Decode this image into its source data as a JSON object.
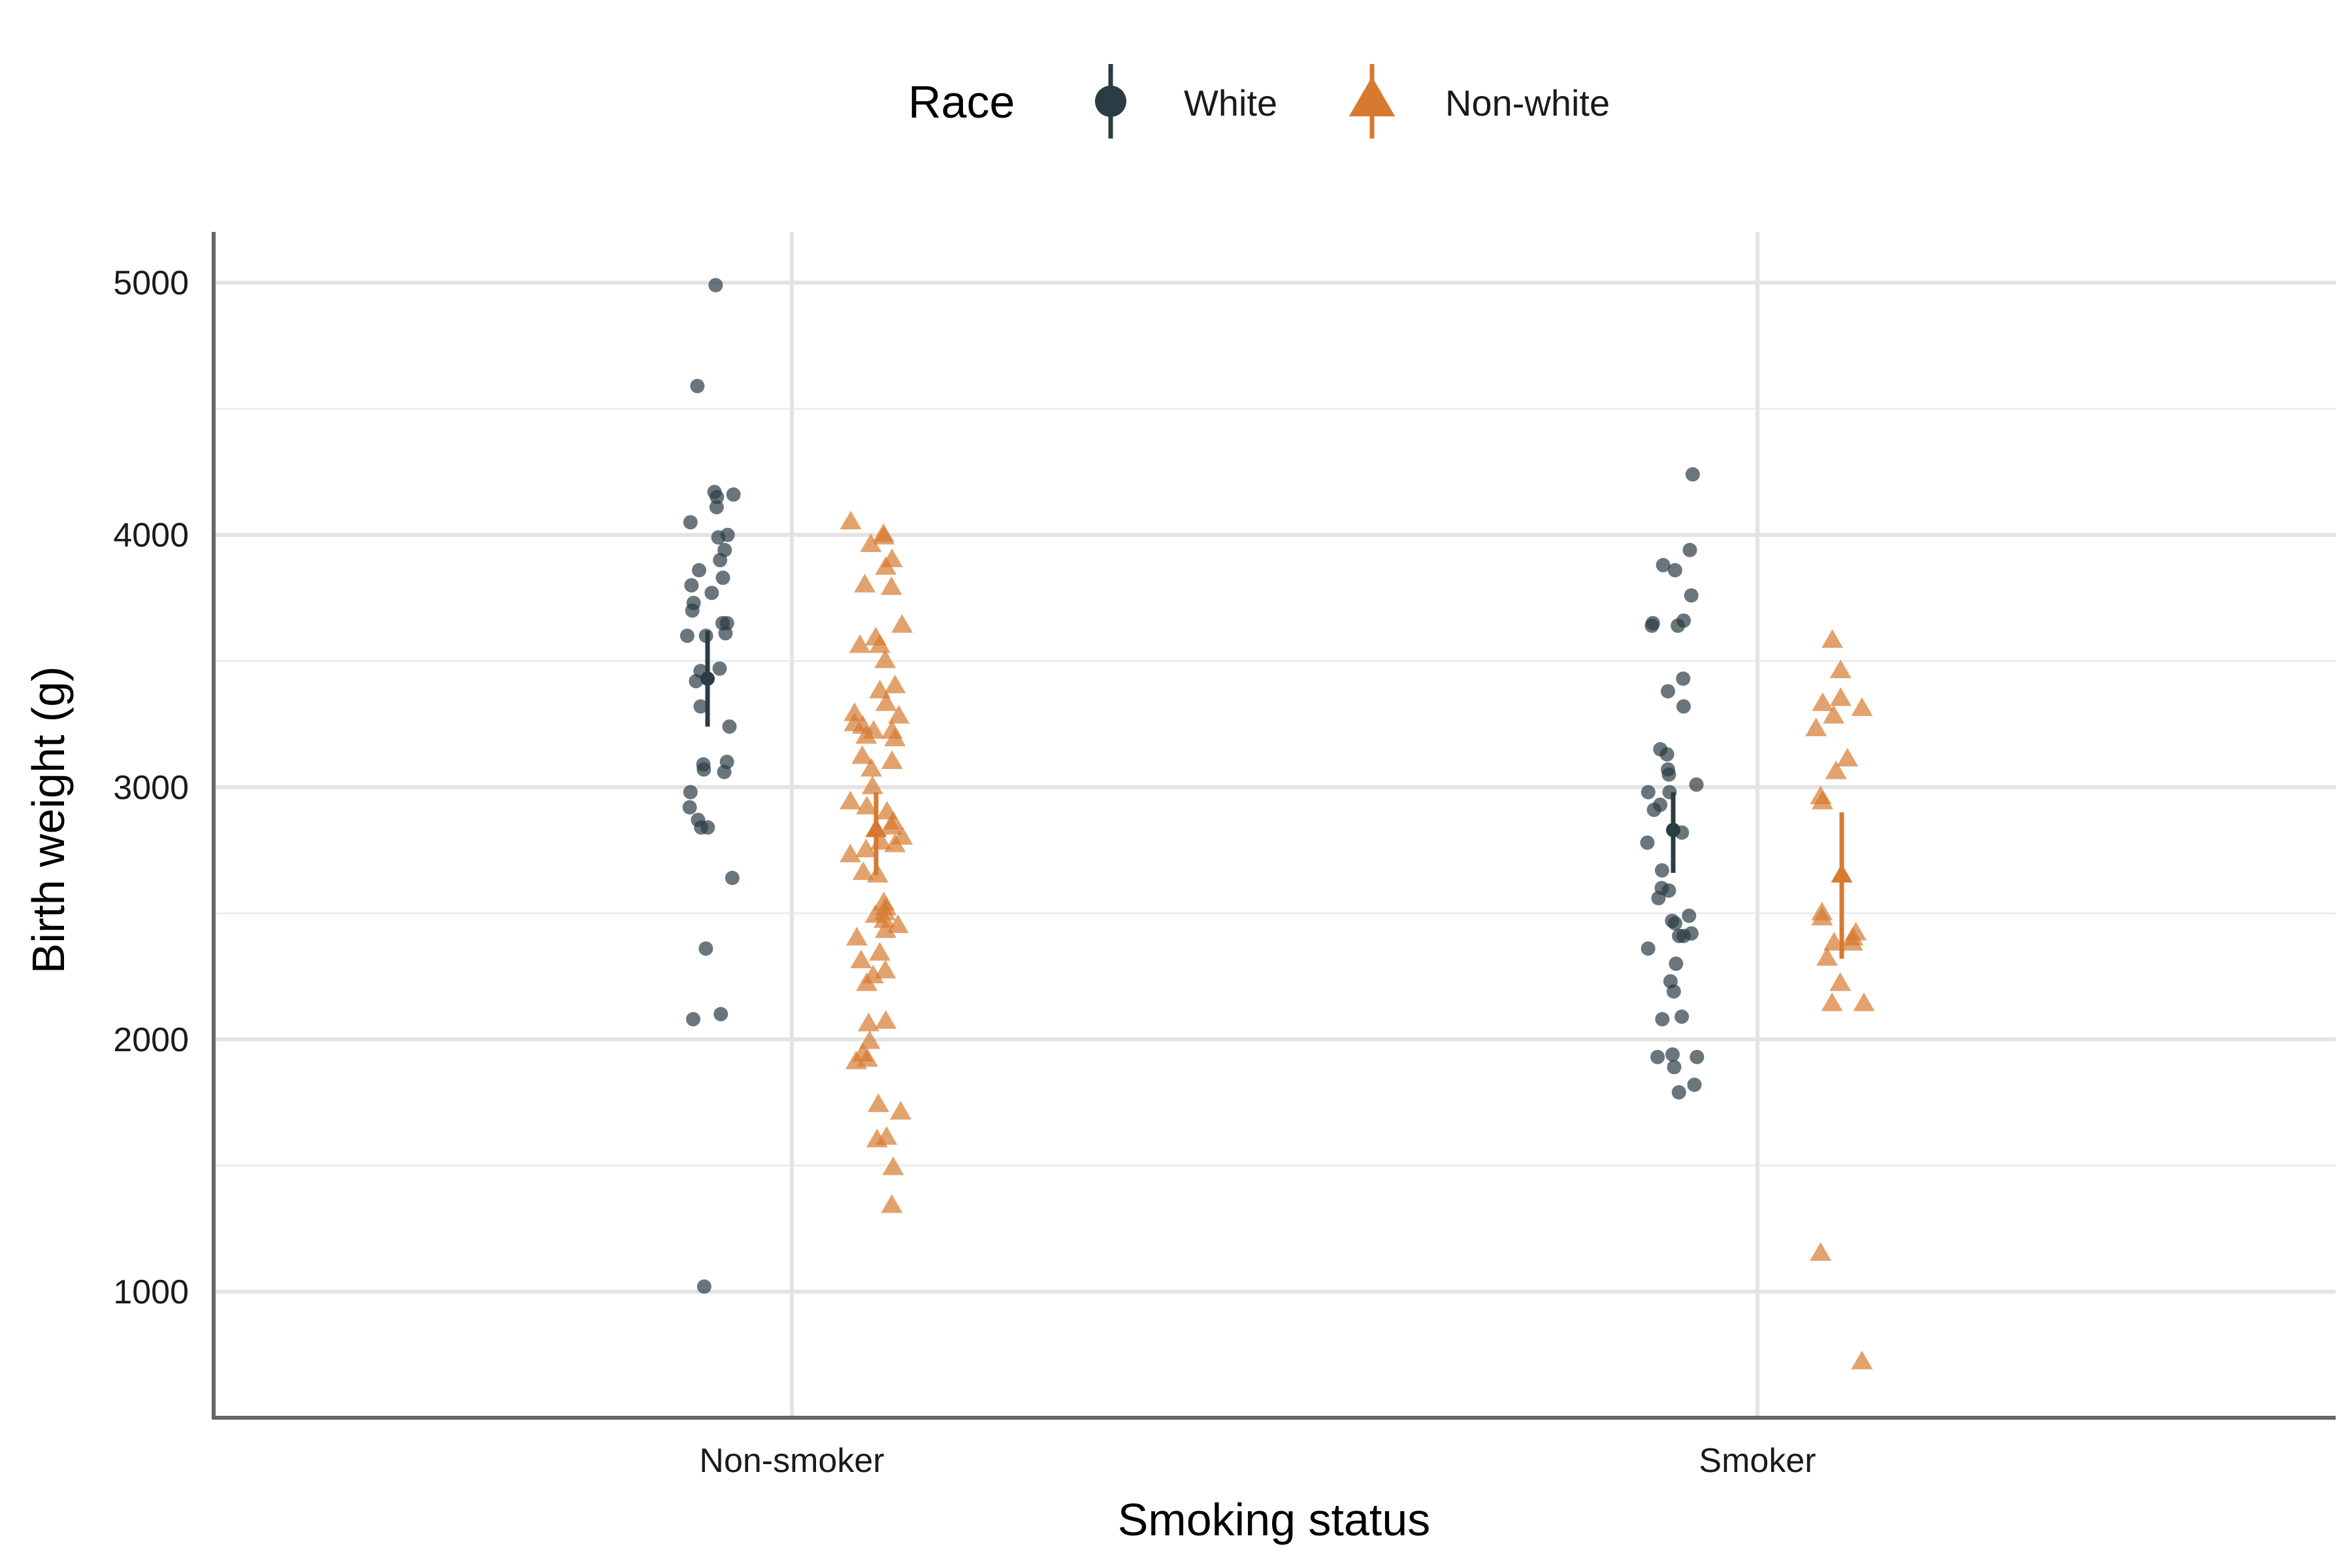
{
  "chart_data": {
    "type": "scatter",
    "xlabel": "Smoking status",
    "ylabel": "Birth weight (g)",
    "categories": [
      "Non-smoker",
      "Smoker"
    ],
    "y_ticks": [
      1000,
      2000,
      3000,
      4000,
      5000
    ],
    "ylim": [
      500,
      5200
    ],
    "grid": true,
    "legend": {
      "title": "Race",
      "placement": "top",
      "entries": [
        {
          "label": "White",
          "shape": "circle",
          "color": "#2b3c44"
        },
        {
          "label": "Non-white",
          "shape": "triangle",
          "color": "#d67a30"
        }
      ]
    },
    "series": [
      {
        "name": "White",
        "color": "#2b3c44",
        "shape": "circle",
        "groups": [
          {
            "category": "Non-smoker",
            "mean": 3430,
            "ci_low": 3240,
            "ci_high": 3620,
            "points": [
              4990,
              4590,
              4170,
              4160,
              4150,
              4110,
              4050,
              4000,
              3990,
              3940,
              3900,
              3860,
              3830,
              3800,
              3770,
              3730,
              3700,
              3650,
              3650,
              3610,
              3600,
              3600,
              3470,
              3460,
              3420,
              3320,
              3240,
              3100,
              3090,
              3070,
              3060,
              2980,
              2920,
              2870,
              2840,
              2840,
              2640,
              2360,
              2100,
              2080,
              1020
            ]
          },
          {
            "category": "Smoker",
            "mean": 2830,
            "ci_low": 2660,
            "ci_high": 2980,
            "points": [
              4240,
              3940,
              3880,
              3860,
              3760,
              3660,
              3650,
              3640,
              3640,
              3430,
              3380,
              3320,
              3150,
              3130,
              3070,
              3050,
              3010,
              2980,
              2980,
              2930,
              2910,
              2820,
              2780,
              2670,
              2600,
              2590,
              2560,
              2490,
              2470,
              2460,
              2420,
              2410,
              2410,
              2360,
              2300,
              2230,
              2190,
              2090,
              2080,
              1940,
              1930,
              1930,
              1890,
              1820,
              1790
            ]
          }
        ]
      },
      {
        "name": "Non-white",
        "color": "#d67a30",
        "shape": "triangle",
        "groups": [
          {
            "category": "Non-smoker",
            "mean": 2830,
            "ci_low": 2650,
            "ci_high": 2980,
            "points": [
              4050,
              4000,
              3990,
              3960,
              3900,
              3870,
              3800,
              3790,
              3640,
              3590,
              3560,
              3560,
              3500,
              3400,
              3380,
              3330,
              3290,
              3280,
              3250,
              3240,
              3220,
              3220,
              3200,
              3190,
              3120,
              3100,
              3070,
              3000,
              2940,
              2920,
              2900,
              2860,
              2840,
              2800,
              2780,
              2770,
              2750,
              2730,
              2660,
              2650,
              2540,
              2520,
              2500,
              2490,
              2470,
              2450,
              2430,
              2400,
              2340,
              2310,
              2270,
              2250,
              2220,
              2070,
              2060,
              1990,
              1940,
              1920,
              1910,
              1740,
              1710,
              1610,
              1600,
              1490,
              1340
            ]
          },
          {
            "category": "Smoker",
            "mean": 2650,
            "ci_low": 2320,
            "ci_high": 2900,
            "points": [
              3580,
              3460,
              3350,
              3330,
              3310,
              3280,
              3230,
              3110,
              3060,
              2960,
              2940,
              2500,
              2480,
              2420,
              2400,
              2380,
              2380,
              2320,
              2220,
              2140,
              2140,
              1150,
              720
            ]
          }
        ]
      }
    ]
  }
}
